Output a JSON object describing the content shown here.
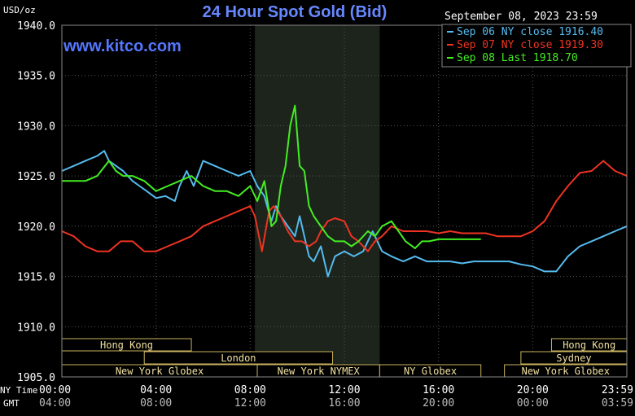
{
  "chart_data": {
    "type": "line",
    "title": "24 Hour Spot Gold (Bid)",
    "unit_label": "USD/oz",
    "watermark": "www.kitco.com",
    "timestamp": "September 08, 2023 23:59",
    "ylim": [
      1905,
      1940
    ],
    "y_ticks": [
      "1940.0",
      "1935.0",
      "1930.0",
      "1925.0",
      "1920.0",
      "1915.0",
      "1910.0",
      "1905.0"
    ],
    "y_tick_values": [
      1940,
      1935,
      1930,
      1925,
      1920,
      1915,
      1910,
      1905
    ],
    "x_range_hours": [
      0,
      24
    ],
    "x_row_label_ny": "NY Time",
    "x_row_label_gmt": "GMT",
    "x_ticks_ny": [
      "00:00",
      "04:00",
      "08:00",
      "12:00",
      "16:00",
      "20:00",
      "23:59"
    ],
    "x_ticks_gmt": [
      "04:00",
      "08:00",
      "12:00",
      "16:00",
      "20:00",
      "00:00",
      "03:59"
    ],
    "x_tick_hours": [
      0,
      4,
      8,
      12,
      16,
      20,
      24
    ],
    "shaded_hours": [
      8.2,
      13.5
    ],
    "sessions": [
      {
        "name": "Hong Kong",
        "row": 0,
        "start": 0,
        "end": 5.5
      },
      {
        "name": "London",
        "row": 1,
        "start": 3.5,
        "end": 11.5
      },
      {
        "name": "New York Globex",
        "row": 2,
        "start": 0,
        "end": 8.3
      },
      {
        "name": "New York NYMEX",
        "row": 2,
        "start": 8.3,
        "end": 13.5
      },
      {
        "name": "NY Globex",
        "row": 2,
        "start": 13.5,
        "end": 17.8
      },
      {
        "name": "Hong Kong",
        "row": 0,
        "start": 20.8,
        "end": 24
      },
      {
        "name": "Sydney",
        "row": 1,
        "start": 19.5,
        "end": 24
      },
      {
        "name": "New York Globex",
        "row": 2,
        "start": 18.8,
        "end": 24
      }
    ],
    "series": [
      {
        "name": "Sep 06 NY close 1916.40",
        "color": "#55bbee",
        "x": [
          0,
          0.5,
          1,
          1.5,
          1.8,
          2,
          2.3,
          2.6,
          3,
          3.3,
          3.6,
          4,
          4.4,
          4.8,
          5,
          5.3,
          5.6,
          6,
          6.5,
          7,
          7.5,
          8,
          8.3,
          8.6,
          8.9,
          9.1,
          9.3,
          9.6,
          9.9,
          10.1,
          10.3,
          10.5,
          10.7,
          11,
          11.3,
          11.6,
          12,
          12.4,
          12.8,
          13.2,
          13.6,
          14,
          14.5,
          15,
          15.5,
          16,
          16.5,
          17,
          17.5,
          18,
          18.5,
          19,
          19.5,
          20,
          20.5,
          21,
          21.5,
          22,
          22.5,
          23,
          23.5,
          24
        ],
        "y": [
          1925.5,
          1926,
          1926.5,
          1927,
          1927.5,
          1926.5,
          1926,
          1925.5,
          1924.5,
          1924,
          1923.5,
          1922.8,
          1923,
          1922.5,
          1924,
          1925.5,
          1924,
          1926.5,
          1926,
          1925.5,
          1925,
          1925.5,
          1924,
          1923,
          1920.5,
          1922,
          1921,
          1920,
          1919,
          1921,
          1919,
          1917,
          1916.5,
          1918,
          1915,
          1917,
          1917.5,
          1917,
          1917.5,
          1919.5,
          1917.5,
          1917,
          1916.5,
          1917,
          1916.5,
          1916.5,
          1916.5,
          1916.3,
          1916.5,
          1916.5,
          1916.5,
          1916.5,
          1916.2,
          1916,
          1915.5,
          1915.5,
          1917,
          1918,
          1918.5,
          1919,
          1919.5,
          1920
        ]
      },
      {
        "name": "Sep 07 NY close 1919.30",
        "color": "#ee3322",
        "x": [
          0,
          0.5,
          1,
          1.5,
          2,
          2.5,
          3,
          3.5,
          4,
          4.5,
          5,
          5.5,
          6,
          6.5,
          7,
          7.5,
          8,
          8.2,
          8.5,
          8.8,
          9,
          9.3,
          9.6,
          9.9,
          10.2,
          10.5,
          10.8,
          11,
          11.3,
          11.6,
          12,
          12.3,
          12.6,
          13,
          13.3,
          13.6,
          14,
          14.5,
          15,
          15.5,
          16,
          16.5,
          17,
          17.5,
          18,
          18.5,
          19,
          19.5,
          20,
          20.5,
          21,
          21.5,
          22,
          22.5,
          23,
          23.5,
          24
        ],
        "y": [
          1919.5,
          1919,
          1918,
          1917.5,
          1917.5,
          1918.5,
          1918.5,
          1917.5,
          1917.5,
          1918,
          1918.5,
          1919,
          1920,
          1920.5,
          1921,
          1921.5,
          1922,
          1921,
          1917.5,
          1921.5,
          1922,
          1921,
          1919.5,
          1918.5,
          1918.5,
          1918,
          1918.5,
          1919.5,
          1920.5,
          1920.8,
          1920.5,
          1919,
          1918.5,
          1917.5,
          1918.5,
          1919,
          1920,
          1919.5,
          1919.5,
          1919.5,
          1919.3,
          1919.5,
          1919.3,
          1919.3,
          1919.3,
          1919,
          1919,
          1919,
          1919.5,
          1920.5,
          1922.5,
          1924,
          1925.3,
          1925.5,
          1926.5,
          1925.5,
          1925
        ]
      },
      {
        "name": "Sep 08 Last 1918.70",
        "color": "#44ee22",
        "x": [
          0,
          0.5,
          1,
          1.5,
          2,
          2.3,
          2.6,
          3,
          3.5,
          4,
          4.5,
          5,
          5.5,
          6,
          6.5,
          7,
          7.5,
          8,
          8.3,
          8.6,
          8.9,
          9.1,
          9.3,
          9.5,
          9.7,
          9.9,
          10.1,
          10.3,
          10.5,
          10.7,
          11,
          11.3,
          11.6,
          12,
          12.3,
          12.6,
          13,
          13.3,
          13.6,
          14,
          14.3,
          14.6,
          15,
          15.3,
          15.6,
          16,
          16.5,
          17,
          17.5,
          17.8
        ],
        "y": [
          1924.5,
          1924.5,
          1924.5,
          1925,
          1926.5,
          1925.5,
          1925,
          1925,
          1924.5,
          1923.5,
          1924,
          1924.5,
          1925,
          1924,
          1923.5,
          1923.5,
          1923,
          1924,
          1922.5,
          1924.5,
          1920,
          1920.5,
          1924,
          1926,
          1930,
          1932,
          1926,
          1925.5,
          1922,
          1921,
          1920,
          1919,
          1918.5,
          1918.5,
          1918,
          1918.5,
          1919.5,
          1919,
          1920,
          1920.5,
          1919.5,
          1918.5,
          1917.8,
          1918.5,
          1918.5,
          1918.7,
          1918.7,
          1918.7,
          1918.7,
          1918.7
        ]
      }
    ]
  }
}
